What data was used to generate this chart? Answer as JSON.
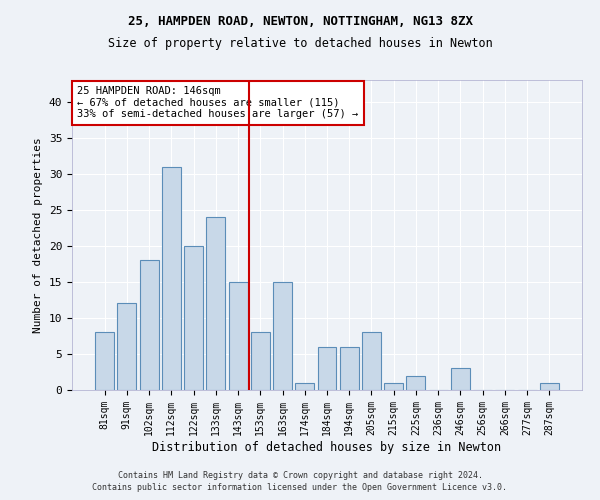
{
  "title1": "25, HAMPDEN ROAD, NEWTON, NOTTINGHAM, NG13 8ZX",
  "title2": "Size of property relative to detached houses in Newton",
  "xlabel": "Distribution of detached houses by size in Newton",
  "ylabel": "Number of detached properties",
  "categories": [
    "81sqm",
    "91sqm",
    "102sqm",
    "112sqm",
    "122sqm",
    "133sqm",
    "143sqm",
    "153sqm",
    "163sqm",
    "174sqm",
    "184sqm",
    "194sqm",
    "205sqm",
    "215sqm",
    "225sqm",
    "236sqm",
    "246sqm",
    "256sqm",
    "266sqm",
    "277sqm",
    "287sqm"
  ],
  "values": [
    8,
    12,
    18,
    31,
    20,
    24,
    15,
    8,
    15,
    1,
    6,
    6,
    8,
    1,
    2,
    0,
    3,
    0,
    0,
    0,
    1
  ],
  "bar_color": "#c8d8e8",
  "bar_edge_color": "#5b8db8",
  "vline_color": "#cc0000",
  "annotation_line1": "25 HAMPDEN ROAD: 146sqm",
  "annotation_line2": "← 67% of detached houses are smaller (115)",
  "annotation_line3": "33% of semi-detached houses are larger (57) →",
  "annotation_box_facecolor": "#ffffff",
  "annotation_box_edgecolor": "#cc0000",
  "ylim": [
    0,
    43
  ],
  "yticks": [
    0,
    5,
    10,
    15,
    20,
    25,
    30,
    35,
    40
  ],
  "bg_color": "#eef2f7",
  "grid_color": "#ffffff",
  "footer1": "Contains HM Land Registry data © Crown copyright and database right 2024.",
  "footer2": "Contains public sector information licensed under the Open Government Licence v3.0.",
  "title1_fontsize": 9,
  "title2_fontsize": 8.5,
  "ylabel_fontsize": 8,
  "xlabel_fontsize": 8.5,
  "tick_fontsize": 7,
  "footer_fontsize": 6,
  "annot_fontsize": 7.5
}
